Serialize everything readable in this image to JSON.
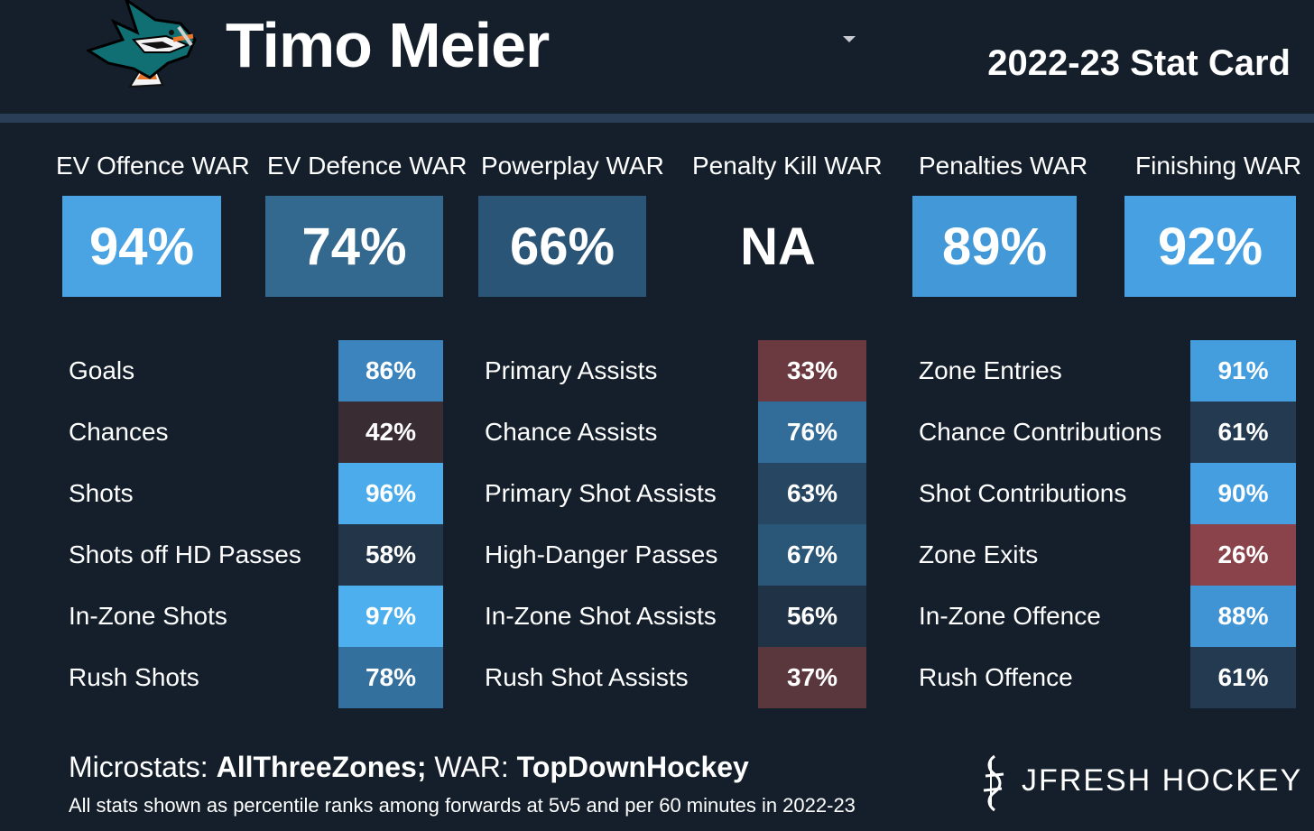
{
  "header": {
    "player_name": "Timo Meier",
    "card_title": "2022-23 Stat Card",
    "logo_icon": "sharks-logo-icon",
    "caret_icon": "caret-down-icon"
  },
  "war": [
    {
      "label": "EV Offence WAR",
      "value": "94%",
      "color": "#4aa3e3"
    },
    {
      "label": "EV Defence WAR",
      "value": "74%",
      "color": "#33688f"
    },
    {
      "label": "Powerplay WAR",
      "value": "66%",
      "color": "#2a5576"
    },
    {
      "label": "Penalty Kill WAR",
      "value": "NA",
      "color": "#141f2b"
    },
    {
      "label": "Penalties WAR",
      "value": "89%",
      "color": "#4399d8"
    },
    {
      "label": "Finishing WAR",
      "value": "92%",
      "color": "#47a0e1"
    }
  ],
  "stats": {
    "col1": [
      {
        "label": "Goals",
        "value": "86%",
        "color": "#3b84bd"
      },
      {
        "label": "Chances",
        "value": "42%",
        "color": "#3a2c33"
      },
      {
        "label": "Shots",
        "value": "96%",
        "color": "#4cabea"
      },
      {
        "label": "Shots off HD Passes",
        "value": "58%",
        "color": "#223549"
      },
      {
        "label": "In-Zone Shots",
        "value": "97%",
        "color": "#4dafee"
      },
      {
        "label": "Rush Shots",
        "value": "78%",
        "color": "#33709d"
      }
    ],
    "col2": [
      {
        "label": "Primary Assists",
        "value": "33%",
        "color": "#6a3a40"
      },
      {
        "label": "Chance Assists",
        "value": "76%",
        "color": "#326c98"
      },
      {
        "label": "Primary Shot Assists",
        "value": "63%",
        "color": "#264661"
      },
      {
        "label": "High-Danger Passes",
        "value": "67%",
        "color": "#2a5677"
      },
      {
        "label": "In-Zone Shot Assists",
        "value": "56%",
        "color": "#1f3246"
      },
      {
        "label": "Rush Shot Assists",
        "value": "37%",
        "color": "#5a363d"
      }
    ],
    "col3": [
      {
        "label": "Zone Entries",
        "value": "91%",
        "color": "#449ddd"
      },
      {
        "label": "Chance Contributions",
        "value": "61%",
        "color": "#233a51"
      },
      {
        "label": "Shot Contributions",
        "value": "90%",
        "color": "#459edf"
      },
      {
        "label": "Zone Exits",
        "value": "26%",
        "color": "#8a434a"
      },
      {
        "label": "In-Zone Offence",
        "value": "88%",
        "color": "#4194d3"
      },
      {
        "label": "Rush Offence",
        "value": "61%",
        "color": "#233a51"
      }
    ]
  },
  "footer": {
    "micro_prefix": "Microstats: ",
    "micro_source": "AllThreeZones;",
    "war_prefix": " WAR: ",
    "war_source": "TopDownHockey",
    "note": "All stats shown as percentile ranks among forwards at 5v5 and per 60 minutes in 2022-23",
    "brand": "JFRESH HOCKEY",
    "brand_icon": "jfresh-logo-icon"
  }
}
